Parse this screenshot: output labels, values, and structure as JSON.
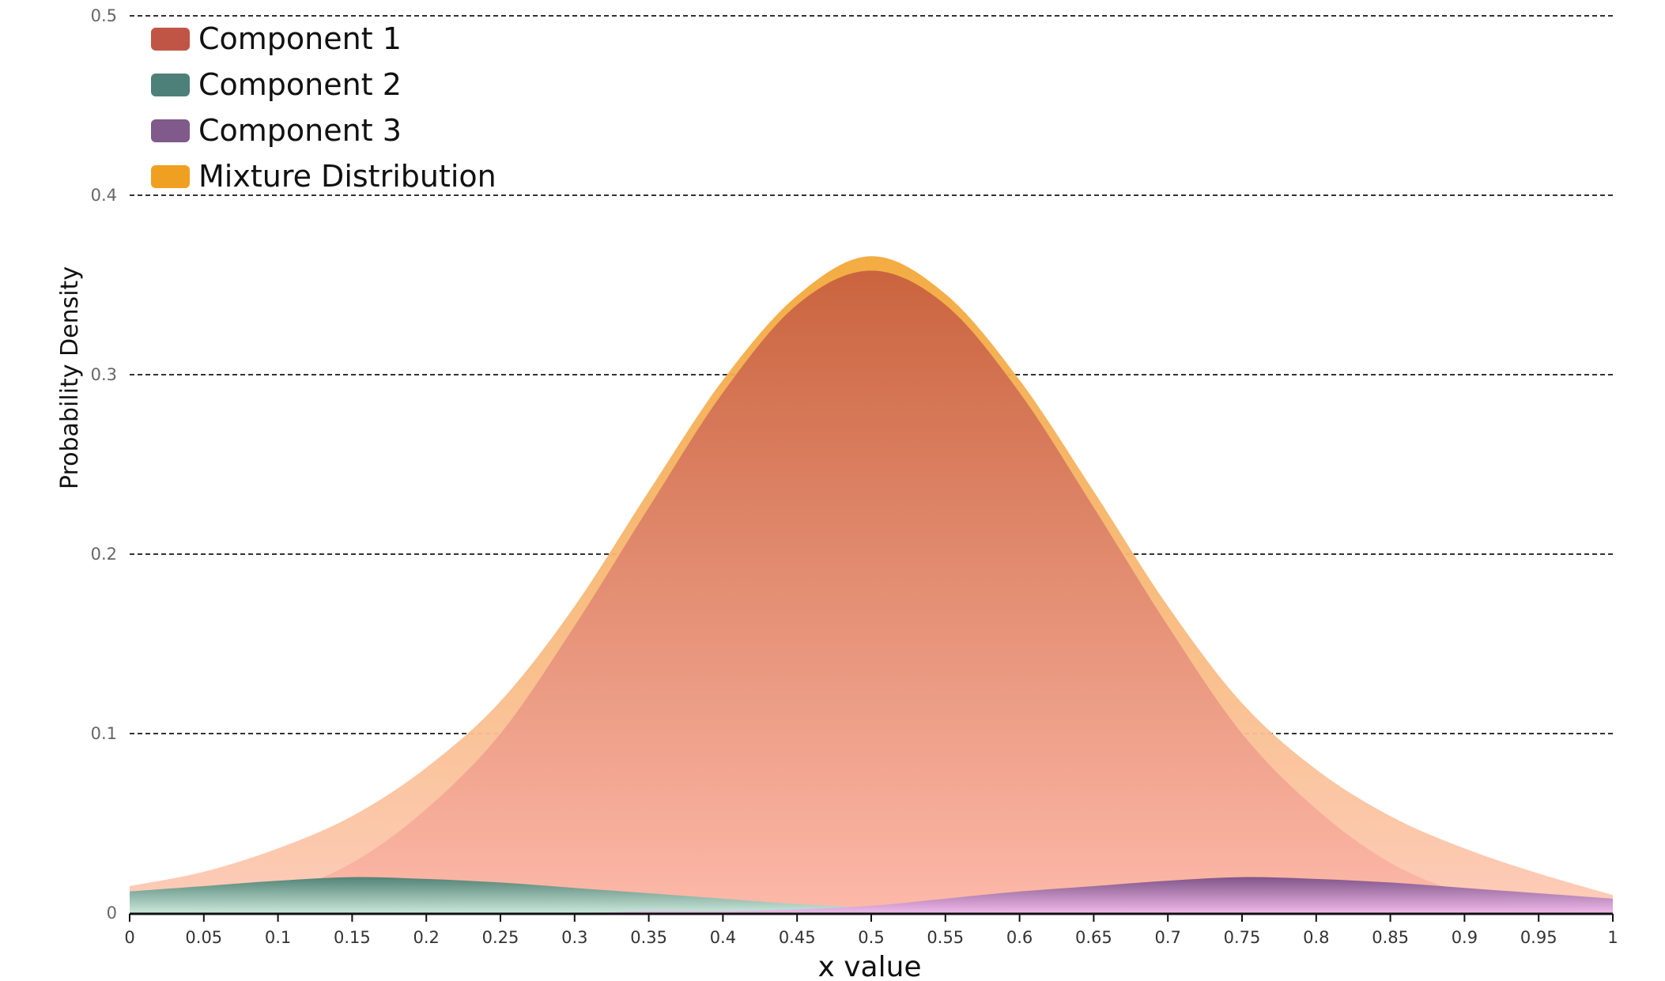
{
  "chart_data": {
    "type": "area",
    "title": "",
    "xlabel": "x value",
    "ylabel": "Probability Density",
    "xlim": [
      0,
      1
    ],
    "ylim": [
      0,
      0.5
    ],
    "x_ticks": [
      0,
      0.05,
      0.1,
      0.15,
      0.2,
      0.25,
      0.3,
      0.35,
      0.4,
      0.45,
      0.5,
      0.55,
      0.6,
      0.65,
      0.7,
      0.75,
      0.8,
      0.85,
      0.9,
      0.95,
      1
    ],
    "x_tick_labels": [
      "0",
      "0.05",
      "0.1",
      "0.15",
      "0.2",
      "0.25",
      "0.3",
      "0.35",
      "0.4",
      "0.45",
      "0.5",
      "0.55",
      "0.6",
      "0.65",
      "0.7",
      "0.75",
      "0.8",
      "0.85",
      "0.9",
      "0.95",
      "1"
    ],
    "y_ticks": [
      0,
      0.1,
      0.2,
      0.3,
      0.4,
      0.5
    ],
    "y_tick_labels": [
      "0",
      "0.1",
      "0.2",
      "0.3",
      "0.4",
      "0.5"
    ],
    "grid": "horizontal dashed",
    "legend_position": "top-left",
    "x": [
      0,
      0.05,
      0.1,
      0.15,
      0.2,
      0.25,
      0.3,
      0.35,
      0.4,
      0.45,
      0.5,
      0.55,
      0.6,
      0.65,
      0.7,
      0.75,
      0.8,
      0.85,
      0.9,
      0.95,
      1
    ],
    "series": [
      {
        "name": "Mixture Distribution",
        "color": "#f0a020",
        "gradient": [
          "#f2a838",
          "#fdc9b6"
        ],
        "values": [
          0.015,
          0.023,
          0.036,
          0.054,
          0.081,
          0.118,
          0.171,
          0.235,
          0.297,
          0.344,
          0.366,
          0.345,
          0.297,
          0.235,
          0.171,
          0.117,
          0.08,
          0.054,
          0.036,
          0.022,
          0.01
        ]
      },
      {
        "name": "Component 1",
        "color": "#c05545",
        "gradient": [
          "#c8603e",
          "#fdb8a8"
        ],
        "values": [
          0.0,
          0.003,
          0.011,
          0.028,
          0.058,
          0.1,
          0.16,
          0.226,
          0.29,
          0.339,
          0.358,
          0.339,
          0.29,
          0.226,
          0.16,
          0.1,
          0.058,
          0.028,
          0.011,
          0.003,
          0.0
        ]
      },
      {
        "name": "Component 2",
        "color": "#4d8078",
        "gradient": [
          "#4a8072",
          "#c8eade"
        ],
        "values": [
          0.012,
          0.015,
          0.018,
          0.02,
          0.019,
          0.017,
          0.014,
          0.011,
          0.008,
          0.005,
          0.003,
          0.002,
          0.001,
          0.001,
          0.0,
          0.0,
          0.0,
          0.0,
          0.0,
          0.0,
          0.0
        ]
      },
      {
        "name": "Component 3",
        "color": "#7f5a8a",
        "gradient": [
          "#7a5088",
          "#f0b8ec"
        ],
        "values": [
          0.0,
          0.0,
          0.0,
          0.0,
          0.0,
          0.0,
          0.0,
          0.001,
          0.001,
          0.002,
          0.004,
          0.008,
          0.012,
          0.015,
          0.018,
          0.02,
          0.019,
          0.017,
          0.014,
          0.011,
          0.008
        ]
      }
    ],
    "legend": [
      {
        "name": "Component 1",
        "color": "#c05545"
      },
      {
        "name": "Component 2",
        "color": "#4d8078"
      },
      {
        "name": "Component 3",
        "color": "#7f5a8a"
      },
      {
        "name": "Mixture Distribution",
        "color": "#f0a020"
      }
    ]
  }
}
